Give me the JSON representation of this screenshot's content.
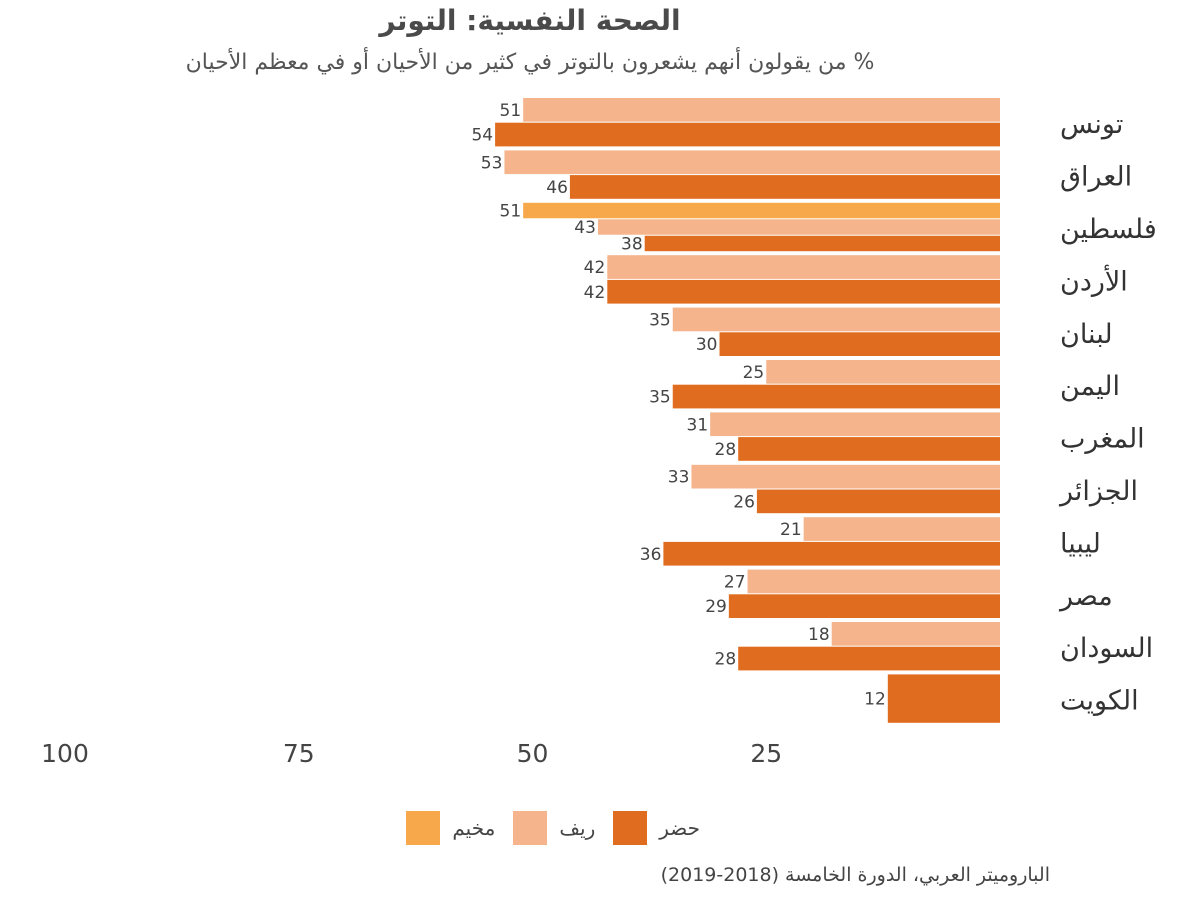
{
  "chart_data": {
    "type": "bar",
    "orientation": "horizontal",
    "title": "الصحة النفسية: التوتر",
    "subtitle": "% من يقولون أنهم يشعرون بالتوتر في كثير من الأحيان أو في معظم الأحيان",
    "xlim": [
      0,
      100
    ],
    "x_ticks": [
      "100",
      "75",
      "50",
      "25"
    ],
    "categories": [
      "تونس",
      "العراق",
      "فلسطين",
      "الأردن",
      "لبنان",
      "اليمن",
      "المغرب",
      "الجزائر",
      "ليبيا",
      "مصر",
      "السودان",
      "الكويت"
    ],
    "series": [
      {
        "name": "مخيم",
        "color": "#f7a84a",
        "values": [
          null,
          null,
          51,
          null,
          null,
          null,
          null,
          null,
          null,
          null,
          null,
          null
        ]
      },
      {
        "name": "ريف",
        "color": "#f5b48c",
        "values": [
          51,
          53,
          43,
          42,
          35,
          25,
          31,
          33,
          21,
          27,
          18,
          null
        ]
      },
      {
        "name": "حضر",
        "color": "#e06c1f",
        "values": [
          54,
          46,
          38,
          42,
          30,
          35,
          28,
          26,
          36,
          29,
          28,
          12
        ]
      }
    ],
    "legend_placement": "bottom",
    "grid": false
  },
  "source": "الباروميتر العربي، الدورة الخامسة (2018-2019)"
}
